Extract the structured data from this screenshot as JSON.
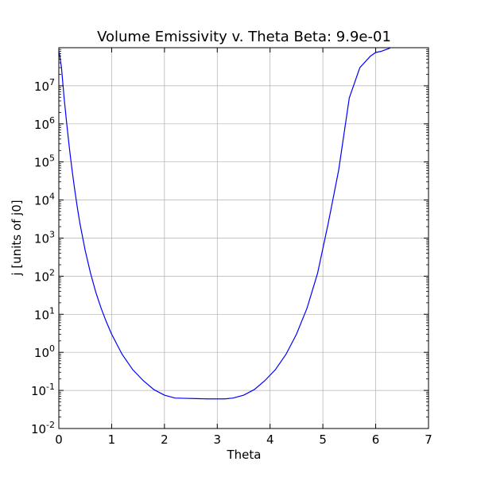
{
  "chart_data": {
    "type": "line",
    "title": "Volume Emissivity v. Theta Beta: 9.9e-01",
    "xlabel": "Theta",
    "ylabel": "j [units of j0]",
    "xlim": [
      0,
      7
    ],
    "ylim": [
      0.01,
      100000000
    ],
    "yscale": "log",
    "grid": true,
    "x_ticks": [
      {
        "value": 0,
        "label": "0"
      },
      {
        "value": 1,
        "label": "1"
      },
      {
        "value": 2,
        "label": "2"
      },
      {
        "value": 3,
        "label": "3"
      },
      {
        "value": 4,
        "label": "4"
      },
      {
        "value": 5,
        "label": "5"
      },
      {
        "value": 6,
        "label": "6"
      },
      {
        "value": 7,
        "label": "7"
      }
    ],
    "y_ticks": [
      {
        "value": 0.01,
        "base": "10",
        "exp": "-2"
      },
      {
        "value": 0.1,
        "base": "10",
        "exp": "-1"
      },
      {
        "value": 1,
        "base": "10",
        "exp": "0"
      },
      {
        "value": 10,
        "base": "10",
        "exp": "1"
      },
      {
        "value": 100,
        "base": "10",
        "exp": "2"
      },
      {
        "value": 1000,
        "base": "10",
        "exp": "3"
      },
      {
        "value": 10000,
        "base": "10",
        "exp": "4"
      },
      {
        "value": 100000,
        "base": "10",
        "exp": "5"
      },
      {
        "value": 1000000,
        "base": "10",
        "exp": "6"
      },
      {
        "value": 10000000,
        "base": "10",
        "exp": "7"
      }
    ],
    "series": [
      {
        "color": "#0000ff",
        "x": [
          0.0,
          0.02,
          0.05,
          0.1,
          0.15,
          0.2,
          0.25,
          0.3,
          0.35,
          0.4,
          0.5,
          0.6,
          0.7,
          0.8,
          0.9,
          1.0,
          1.2,
          1.4,
          1.6,
          1.8,
          2.0,
          2.2,
          2.4,
          2.6,
          2.8,
          3.0,
          3.14,
          3.3,
          3.5,
          3.7,
          3.9,
          4.1,
          4.3,
          4.5,
          4.7,
          4.9,
          5.1,
          5.3,
          5.5,
          5.7,
          5.9,
          6.0,
          6.1,
          6.15,
          6.2,
          6.25,
          6.28
        ],
        "y": [
          80000000,
          60000000,
          30000000,
          4800000,
          1000000,
          230000,
          62000,
          19000,
          6400,
          2400,
          470,
          120,
          38,
          14.5,
          6.3,
          3.0,
          0.88,
          0.35,
          0.18,
          0.105,
          0.075,
          0.063,
          0.062,
          0.061,
          0.06,
          0.06,
          0.06,
          0.063,
          0.075,
          0.105,
          0.18,
          0.35,
          0.88,
          3.0,
          14.5,
          120,
          2400,
          62000,
          4800000,
          30000000,
          60000000,
          75000000,
          80000000,
          85000000,
          90000000,
          95000000,
          100000000
        ]
      }
    ]
  }
}
